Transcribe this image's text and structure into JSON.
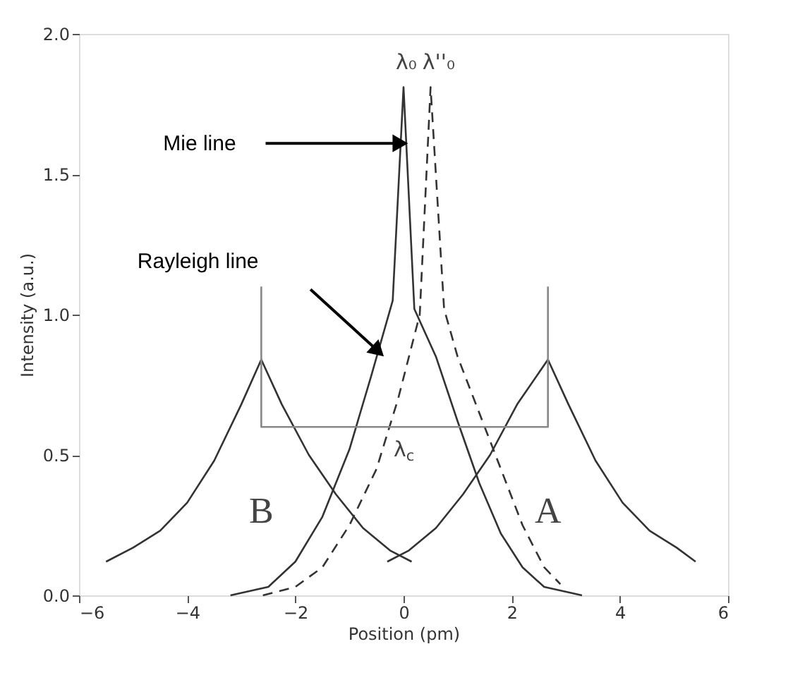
{
  "chart_data": {
    "type": "line",
    "xlabel": "Position (pm)",
    "ylabel": "Intensity (a.u.)",
    "xlim": [
      -6,
      6
    ],
    "xticks": [
      -6,
      -4,
      -2,
      0,
      2,
      4,
      6
    ],
    "ylim": [
      0,
      2
    ],
    "yticks": [
      {
        "value": 0,
        "label": "0.0"
      },
      0.5,
      {
        "value": 1,
        "label": "1.0"
      },
      1.5,
      {
        "value": 2,
        "label": "2.0"
      }
    ],
    "grid": false,
    "legend": false,
    "marker": "none",
    "series": [
      {
        "color": "#333333",
        "line_style": "solid",
        "x": [
          -5.5,
          -5.0,
          -4.5,
          -4.0,
          -3.5,
          -3.0,
          -2.63,
          -2.25,
          -1.75,
          -1.25,
          -0.75,
          -0.25,
          0.15
        ],
        "values": [
          0.12,
          0.17,
          0.23,
          0.33,
          0.48,
          0.68,
          0.84,
          0.68,
          0.5,
          0.36,
          0.24,
          0.16,
          0.12
        ]
      },
      {
        "color": "#333333",
        "line_style": "solid",
        "x": [
          -0.3,
          0.1,
          0.6,
          1.1,
          1.6,
          2.1,
          2.67,
          3.05,
          3.55,
          4.05,
          4.55,
          5.05,
          5.4
        ],
        "values": [
          0.12,
          0.16,
          0.24,
          0.36,
          0.5,
          0.68,
          0.84,
          0.68,
          0.48,
          0.33,
          0.23,
          0.17,
          0.12
        ]
      },
      {
        "color": "#333333",
        "line_style": "solid",
        "x": [
          -3.2,
          -2.5,
          -2.0,
          -1.5,
          -1.0,
          -0.6,
          -0.2,
          0.0,
          0.2,
          0.6,
          1.0,
          1.4,
          1.8,
          2.2,
          2.6,
          3.3
        ],
        "values": [
          0.0,
          0.03,
          0.12,
          0.28,
          0.52,
          0.78,
          1.05,
          1.81,
          1.02,
          0.85,
          0.62,
          0.4,
          0.22,
          0.1,
          0.03,
          0.0
        ]
      },
      {
        "color": "#333333",
        "line_style": "dashed",
        "x": [
          -2.6,
          -2.0,
          -1.5,
          -1.0,
          -0.5,
          -0.1,
          0.3,
          0.5,
          0.75,
          1.0,
          1.4,
          1.8,
          2.2,
          2.6,
          2.9
        ],
        "values": [
          0.0,
          0.03,
          0.1,
          0.25,
          0.45,
          0.7,
          1.0,
          1.81,
          1.02,
          0.85,
          0.65,
          0.45,
          0.25,
          0.1,
          0.04
        ]
      },
      {
        "color": "#888888",
        "line_style": "solid",
        "x": [
          -2.63,
          -2.63,
          2.67,
          2.67
        ],
        "values": [
          1.1,
          0.6,
          0.6,
          1.1
        ]
      }
    ],
    "annotations": [
      "Mie line",
      "Rayleigh line",
      "λ₀",
      "λ''₀",
      "λ$_{c}$",
      "B",
      "A"
    ]
  }
}
